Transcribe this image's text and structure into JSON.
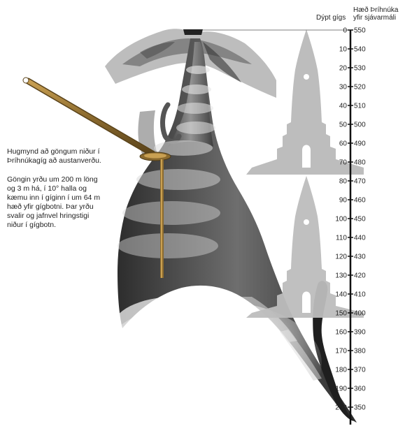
{
  "captions": {
    "intro": "Hugmynd að göngum niður í Þríhnúkagíg að austanverðu.",
    "detail": "Göngin yrðu um 200 m löng og 3 m há, í 10° halla og kæmu inn í gíginn í um 64 m hæð yfir gígbotni. Þar yrðu svalir og jafnvel hringstigi niður í gígbotn."
  },
  "scale": {
    "depth_header": "Dýpt gígs",
    "elevation_header_line1": "Hæð Þríhnúka",
    "elevation_header_line2": "yfir sjávarmáli",
    "depth_labels": [
      "0",
      "10",
      "20",
      "30",
      "40",
      "50",
      "60",
      "70",
      "80",
      "90",
      "100",
      "110",
      "120",
      "130",
      "140",
      "150",
      "160",
      "170",
      "180",
      "190",
      "200"
    ],
    "elevation_labels": [
      "550",
      "540",
      "530",
      "520",
      "510",
      "500",
      "490",
      "480",
      "470",
      "460",
      "450",
      "440",
      "430",
      "420",
      "410",
      "400",
      "390",
      "380",
      "370",
      "360",
      "350"
    ],
    "depth_range_m": [
      0,
      200
    ],
    "elevation_range_m": [
      550,
      350
    ]
  },
  "colors": {
    "tunnel": "#8b6a2e",
    "tunnel_highlight": "#c9a052",
    "church": "#bdbdbd",
    "cave_dark": "#3a3a3a",
    "axis": "#111111"
  },
  "icons": {
    "church_top": "hallgrimskirkja-silhouette",
    "church_bottom": "hallgrimskirkja-silhouette"
  }
}
